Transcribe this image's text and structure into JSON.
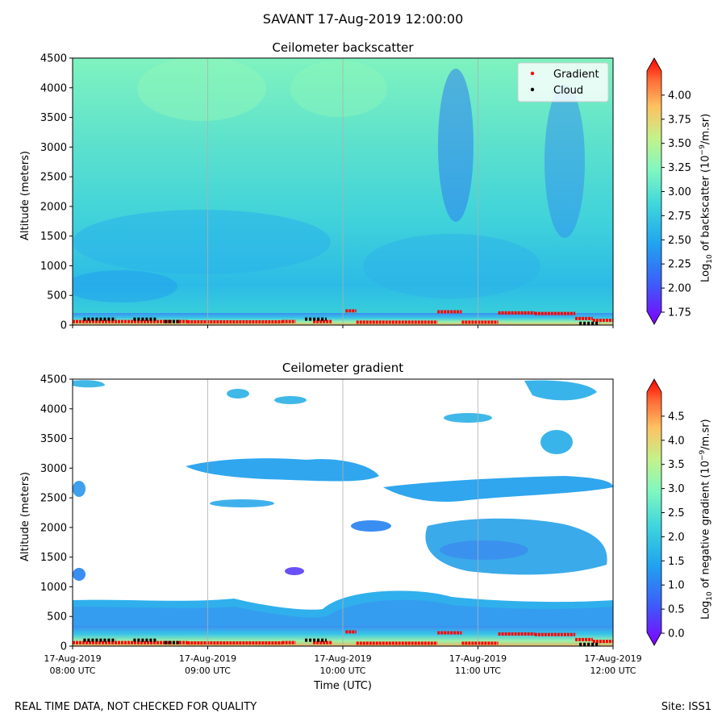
{
  "title": "SAVANT 17-Aug-2019 12:00:00",
  "footer": {
    "left": "REAL TIME DATA, NOT CHECKED FOR QUALITY",
    "right": "Site: ISS1"
  },
  "colors": {
    "violet": "#8000ff",
    "blue": "#2a78f2",
    "cyan": "#3fc8e4",
    "green": "#7fffc4",
    "yellow": "#d4e167",
    "orange": "#ff8a45",
    "red": "#ff0000"
  },
  "chart_data": [
    {
      "type": "heatmap",
      "title": "Ceilometer backscatter",
      "ylabel": "Altitude (meters)",
      "xlabel": "",
      "ylim": [
        0,
        4500
      ],
      "yticks": [
        "0",
        "500",
        "1000",
        "1500",
        "2000",
        "2500",
        "3000",
        "3500",
        "4000",
        "4500"
      ],
      "x_range_utc": [
        "08:00",
        "12:00"
      ],
      "legend": {
        "position": "top-right",
        "entries": [
          "Gradient",
          "Cloud"
        ]
      },
      "colorbar": {
        "label_prefix": "Log",
        "label_sub": "10",
        "label_mid": " of backscatter (10",
        "label_sup": "−9",
        "label_suffix": "/m.sr)",
        "range": [
          1.75,
          4.25
        ],
        "ticks": [
          "1.75",
          "2.00",
          "2.25",
          "2.50",
          "2.75",
          "3.00",
          "3.25",
          "3.50",
          "3.75",
          "4.00"
        ]
      }
    },
    {
      "type": "heatmap",
      "title": "Ceilometer gradient",
      "ylabel": "Altitude (meters)",
      "xlabel": "Time (UTC)",
      "ylim": [
        0,
        4500
      ],
      "yticks": [
        "0",
        "500",
        "1000",
        "1500",
        "2000",
        "2500",
        "3000",
        "3500",
        "4000",
        "4500"
      ],
      "x_range_utc": [
        "08:00",
        "12:00"
      ],
      "xticks": [
        {
          "date": "17-Aug-2019",
          "time": "08:00 UTC"
        },
        {
          "date": "17-Aug-2019",
          "time": "09:00 UTC"
        },
        {
          "date": "17-Aug-2019",
          "time": "10:00 UTC"
        },
        {
          "date": "17-Aug-2019",
          "time": "11:00 UTC"
        },
        {
          "date": "17-Aug-2019",
          "time": "12:00 UTC"
        }
      ],
      "colorbar": {
        "label_prefix": "Log",
        "label_sub": "10",
        "label_mid": " of negative gradient (10",
        "label_sup": "−9",
        "label_suffix": "/m.sr)",
        "range": [
          0.0,
          5.0
        ],
        "ticks": [
          "0.0",
          "0.5",
          "1.0",
          "1.5",
          "2.0",
          "2.5",
          "3.0",
          "3.5",
          "4.0",
          "4.5"
        ]
      }
    }
  ],
  "gradient_series": [
    {
      "t0": 8.0,
      "t1": 8.85,
      "alt": 60
    },
    {
      "t0": 8.85,
      "t1": 9.55,
      "alt": 55
    },
    {
      "t0": 9.55,
      "t1": 9.65,
      "alt": 60
    },
    {
      "t0": 9.78,
      "t1": 9.92,
      "alt": 60
    },
    {
      "t0": 10.02,
      "t1": 10.1,
      "alt": 240
    },
    {
      "t0": 10.1,
      "t1": 10.7,
      "alt": 50
    },
    {
      "t0": 10.7,
      "t1": 10.88,
      "alt": 225
    },
    {
      "t0": 10.88,
      "t1": 11.15,
      "alt": 50
    },
    {
      "t0": 11.15,
      "t1": 11.42,
      "alt": 205
    },
    {
      "t0": 11.42,
      "t1": 11.72,
      "alt": 195
    },
    {
      "t0": 11.72,
      "t1": 11.85,
      "alt": 110
    },
    {
      "t0": 11.85,
      "t1": 12.0,
      "alt": 80
    }
  ],
  "cloud_series": [
    {
      "t0": 8.08,
      "t1": 8.32,
      "alt": 100
    },
    {
      "t0": 8.45,
      "t1": 8.62,
      "alt": 100
    },
    {
      "t0": 8.68,
      "t1": 8.8,
      "alt": 60
    },
    {
      "t0": 9.72,
      "t1": 9.88,
      "alt": 100
    },
    {
      "t0": 11.75,
      "t1": 11.9,
      "alt": 30
    }
  ]
}
